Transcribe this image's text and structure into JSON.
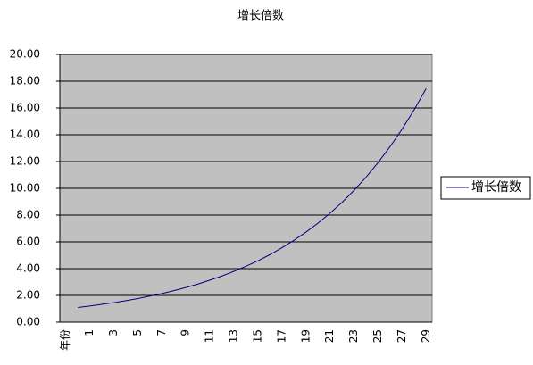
{
  "chart_data": {
    "type": "line",
    "title": "增长倍数",
    "categories": [
      "年份",
      null,
      "1",
      null,
      "3",
      null,
      "5",
      null,
      "7",
      null,
      "9",
      null,
      "11",
      null,
      "13",
      null,
      "15",
      null,
      "17",
      null,
      "19",
      null,
      "21",
      null,
      "23",
      null,
      "25",
      null,
      "27",
      null,
      "29"
    ],
    "series": [
      {
        "name": "增长倍数",
        "color": "#000080",
        "values": [
          null,
          1.1,
          1.21,
          1.33,
          1.46,
          1.61,
          1.77,
          1.95,
          2.14,
          2.36,
          2.59,
          2.85,
          3.14,
          3.45,
          3.8,
          4.18,
          4.59,
          5.05,
          5.56,
          6.12,
          6.73,
          7.4,
          8.14,
          8.95,
          9.85,
          10.83,
          11.92,
          13.11,
          14.42,
          15.86,
          17.45
        ]
      }
    ],
    "ylim": [
      0,
      20
    ],
    "yticks": [
      {
        "value": 0,
        "label": "0.00"
      },
      {
        "value": 2,
        "label": "2.00"
      },
      {
        "value": 4,
        "label": "4.00"
      },
      {
        "value": 6,
        "label": "6.00"
      },
      {
        "value": 8,
        "label": "8.00"
      },
      {
        "value": 10,
        "label": "10.00"
      },
      {
        "value": 12,
        "label": "12.00"
      },
      {
        "value": 14,
        "label": "14.00"
      },
      {
        "value": 16,
        "label": "16.00"
      },
      {
        "value": 18,
        "label": "18.00"
      },
      {
        "value": 20,
        "label": "20.00"
      }
    ],
    "grid": true,
    "legend": "right",
    "background": "#c0c0c0"
  }
}
